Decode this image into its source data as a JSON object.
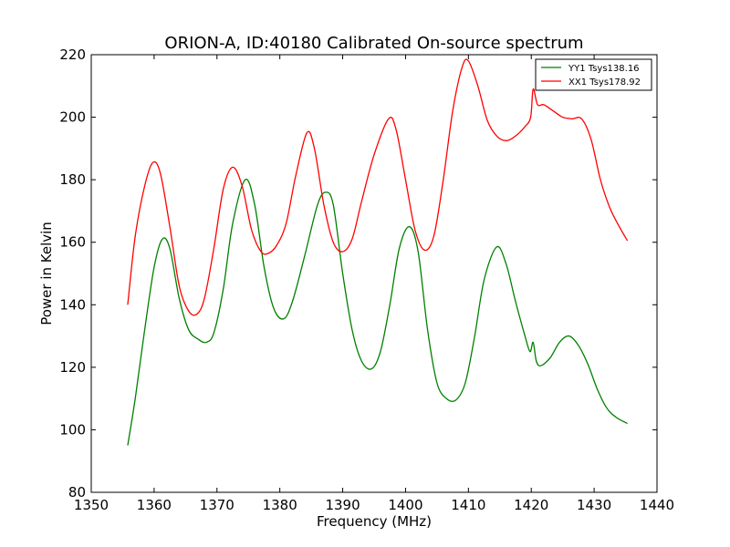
{
  "chart_data": {
    "type": "line",
    "title": "ORION-A, ID:40180 Calibrated On-source spectrum",
    "xlabel": "Frequency (MHz)",
    "ylabel": "Power in Kelvin",
    "xlim": [
      1350,
      1440
    ],
    "ylim": [
      80,
      220
    ],
    "xticks": [
      1350,
      1360,
      1370,
      1380,
      1390,
      1400,
      1410,
      1420,
      1430,
      1440
    ],
    "yticks": [
      80,
      100,
      120,
      140,
      160,
      180,
      200,
      220
    ],
    "grid": false,
    "legend_position": "top-right",
    "series": [
      {
        "name": "YY1 Tsys138.16",
        "color": "#008000",
        "x": [
          1355.8,
          1357,
          1358.5,
          1360,
          1361.3,
          1362.5,
          1364,
          1365.5,
          1367,
          1368.3,
          1369.5,
          1371,
          1372.5,
          1374.5,
          1376,
          1377.5,
          1379,
          1380.6,
          1382,
          1384,
          1386,
          1387.3,
          1388.5,
          1390,
          1391.5,
          1393,
          1394.6,
          1396,
          1397.5,
          1399,
          1400.6,
          1402,
          1403.5,
          1405,
          1406.5,
          1408,
          1409.5,
          1411,
          1412.5,
          1414.5,
          1416,
          1417.5,
          1419,
          1419.8,
          1420.3,
          1420.8,
          1421.5,
          1423,
          1424.5,
          1426,
          1427.5,
          1429,
          1430.5,
          1432,
          1433.5,
          1435.3
        ],
        "values": [
          95,
          110,
          132,
          152,
          161,
          158,
          142,
          132,
          129,
          128,
          131,
          145,
          166,
          180,
          172,
          152,
          139,
          135.5,
          141,
          156,
          172,
          176,
          172,
          150,
          132,
          122,
          119.5,
          125,
          140,
          158,
          165,
          157,
          132,
          115,
          110,
          109.5,
          115,
          130,
          148,
          158.5,
          153,
          141,
          130,
          125,
          128,
          122,
          120.5,
          123,
          128,
          130,
          127,
          121,
          113,
          107,
          104,
          102
        ]
      },
      {
        "name": "XX1 Tsys178.92",
        "color": "#ff0000",
        "x": [
          1355.8,
          1357,
          1358.5,
          1359.8,
          1361,
          1362.5,
          1364,
          1365.5,
          1366.8,
          1368,
          1369.5,
          1371,
          1372.5,
          1374,
          1375.5,
          1377,
          1378.2,
          1379.5,
          1381,
          1382.5,
          1384.3,
          1385.5,
          1387,
          1388.5,
          1390,
          1391.5,
          1393,
          1395,
          1397.3,
          1398.5,
          1400,
          1401.5,
          1403,
          1404.5,
          1406,
          1407.5,
          1409,
          1410,
          1411.5,
          1413,
          1414.5,
          1416,
          1417.5,
          1419,
          1419.9,
          1420.3,
          1421,
          1422,
          1423.5,
          1425,
          1426.5,
          1428,
          1429.5,
          1431,
          1432.5,
          1434,
          1435.3
        ],
        "values": [
          140,
          162,
          178,
          185.5,
          182,
          165,
          146,
          138,
          137,
          142,
          158,
          177,
          184,
          178,
          164,
          157,
          156.5,
          159,
          166,
          181,
          195,
          190,
          172,
          160,
          157,
          161,
          173,
          188,
          199.5,
          196,
          180,
          164,
          157.5,
          162,
          180,
          202,
          216,
          218,
          210,
          199,
          194,
          192.5,
          194,
          197,
          200,
          209,
          204,
          204,
          202,
          200,
          199.5,
          199.5,
          193,
          180,
          171,
          165,
          160.5
        ]
      }
    ]
  }
}
